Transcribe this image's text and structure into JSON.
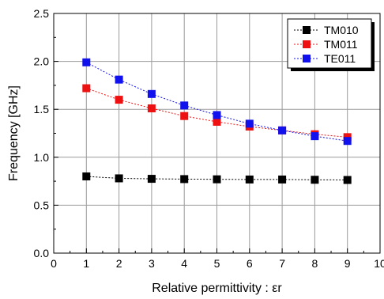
{
  "chart_data": {
    "type": "line",
    "xlabel": "Relative permittivity : εr",
    "ylabel": "Frequency [GHz]",
    "xlim": [
      0,
      10
    ],
    "ylim": [
      0.0,
      2.5
    ],
    "x_ticks": [
      0,
      1,
      2,
      3,
      4,
      5,
      6,
      7,
      8,
      9,
      10
    ],
    "y_ticks": [
      0.0,
      0.5,
      1.0,
      1.5,
      2.0,
      2.5
    ],
    "x_tick_labels": [
      "0",
      "1",
      "2",
      "3",
      "4",
      "5",
      "6",
      "7",
      "8",
      "9",
      "10"
    ],
    "y_tick_labels": [
      "0.0",
      "0.5",
      "1.0",
      "1.5",
      "2.0",
      "2.5"
    ],
    "grid": true,
    "legend_position": "top-right",
    "x": [
      1,
      2,
      3,
      4,
      5,
      6,
      7,
      8,
      9
    ],
    "series": [
      {
        "name": "TM010",
        "color": "#000000",
        "values": [
          0.8,
          0.78,
          0.775,
          0.772,
          0.77,
          0.768,
          0.768,
          0.765,
          0.763
        ]
      },
      {
        "name": "TM011",
        "color": "#ee1111",
        "values": [
          1.72,
          1.6,
          1.51,
          1.43,
          1.37,
          1.32,
          1.28,
          1.24,
          1.21
        ]
      },
      {
        "name": "TE011",
        "color": "#1111ee",
        "values": [
          1.99,
          1.81,
          1.66,
          1.54,
          1.44,
          1.35,
          1.28,
          1.22,
          1.17
        ]
      }
    ]
  }
}
